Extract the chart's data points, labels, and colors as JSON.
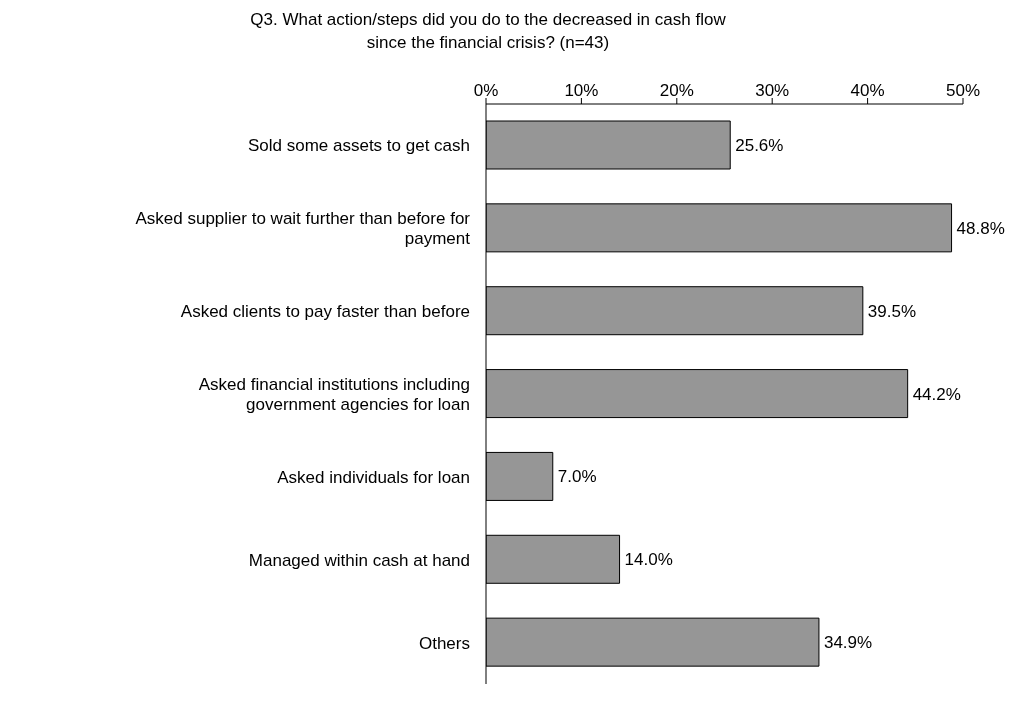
{
  "chart_data": {
    "type": "bar",
    "orientation": "horizontal",
    "title": "Q3. What action/steps did you do to the decreased in cash flow since the financial crisis?  (n=43)",
    "categories": [
      "Sold some assets to get cash",
      "Asked supplier to wait further than before for payment",
      "Asked clients to pay faster than before",
      "Asked financial institutions including government agencies for loan",
      "Asked individuals for loan",
      "Managed within cash at hand",
      "Others"
    ],
    "values": [
      25.6,
      48.8,
      39.5,
      44.2,
      7.0,
      14.0,
      34.9
    ],
    "value_labels": [
      "25.6%",
      "48.8%",
      "39.5%",
      "44.2%",
      "7.0%",
      "14.0%",
      "34.9%"
    ],
    "color": "#969696",
    "xlim": [
      0,
      50
    ],
    "xticks": [
      {
        "value": 0,
        "label": "0%"
      },
      {
        "value": 10,
        "label": "10%"
      },
      {
        "value": 20,
        "label": "20%"
      },
      {
        "value": 30,
        "label": "30%"
      },
      {
        "value": 40,
        "label": "40%"
      },
      {
        "value": 50,
        "label": "50%"
      }
    ],
    "grid": false,
    "legend": false
  }
}
